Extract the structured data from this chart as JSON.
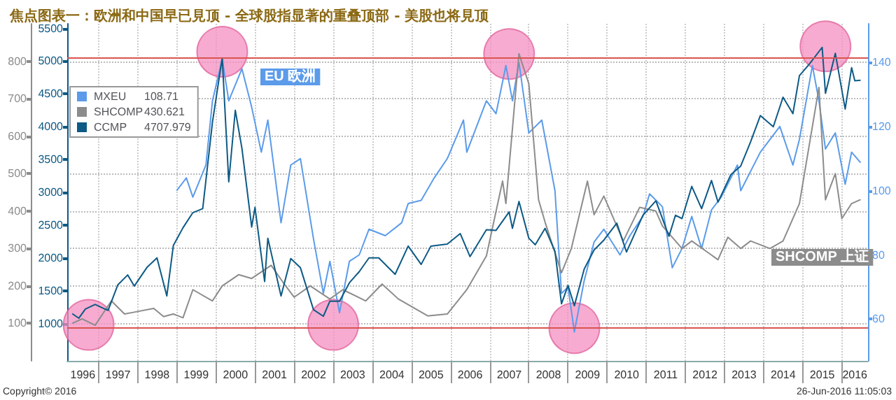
{
  "chart_data": {
    "type": "line",
    "title": "焦点图表一：欧洲和中国早已見顶 - 全球股指显著的重叠顶部 - 美股也将見顶",
    "annotations": [
      "EU 欧洲",
      "SHCOMP 上证",
      "Copyright© 2016",
      "26-Jun-2016 11:05:03",
      "108.71",
      "430.621",
      "4707.979"
    ],
    "xlim": [
      "1996-03-15",
      "2016-09-01"
    ],
    "xticks": [
      {
        "value": "1996-08-08",
        "label": "1996"
      },
      {
        "value": "1997-01-01",
        "label": null
      },
      {
        "value": "1997-07-02",
        "label": "1997"
      },
      {
        "value": "1998-01-01",
        "label": null
      },
      {
        "value": "1998-07-02",
        "label": "1998"
      },
      {
        "value": "1999-01-01",
        "label": null
      },
      {
        "value": "1999-07-02",
        "label": "1999"
      },
      {
        "value": "2000-01-01",
        "label": null
      },
      {
        "value": "2000-07-02",
        "label": "2000"
      },
      {
        "value": "2001-01-01",
        "label": null
      },
      {
        "value": "2001-07-02",
        "label": "2001"
      },
      {
        "value": "2002-01-01",
        "label": null
      },
      {
        "value": "2002-07-02",
        "label": "2002"
      },
      {
        "value": "2003-01-01",
        "label": null
      },
      {
        "value": "2003-07-02",
        "label": "2003"
      },
      {
        "value": "2004-01-01",
        "label": null
      },
      {
        "value": "2004-07-02",
        "label": "2004"
      },
      {
        "value": "2005-01-01",
        "label": null
      },
      {
        "value": "2005-07-02",
        "label": "2005"
      },
      {
        "value": "2006-01-01",
        "label": null
      },
      {
        "value": "2006-07-02",
        "label": "2006"
      },
      {
        "value": "2007-01-01",
        "label": null
      },
      {
        "value": "2007-07-02",
        "label": "2007"
      },
      {
        "value": "2008-01-01",
        "label": null
      },
      {
        "value": "2008-07-02",
        "label": "2008"
      },
      {
        "value": "2009-01-01",
        "label": null
      },
      {
        "value": "2009-07-02",
        "label": "2009"
      },
      {
        "value": "2010-01-01",
        "label": null
      },
      {
        "value": "2010-07-02",
        "label": "2010"
      },
      {
        "value": "2011-01-01",
        "label": null
      },
      {
        "value": "2011-07-02",
        "label": "2011"
      },
      {
        "value": "2012-01-01",
        "label": null
      },
      {
        "value": "2012-07-02",
        "label": "2012"
      },
      {
        "value": "2013-01-01",
        "label": null
      },
      {
        "value": "2013-07-02",
        "label": "2013"
      },
      {
        "value": "2014-01-01",
        "label": null
      },
      {
        "value": "2014-07-02",
        "label": "2014"
      },
      {
        "value": "2015-01-01",
        "label": null
      },
      {
        "value": "2015-07-02",
        "label": "2015"
      },
      {
        "value": "2016-01-01",
        "label": null
      },
      {
        "value": "2016-05-01",
        "label": "2016"
      }
    ],
    "ylim": [
      0,
      900
    ],
    "yticks": [
      100,
      200,
      300,
      400,
      500,
      600,
      700,
      800
    ],
    "y2lim": [
      430,
      5570
    ],
    "y2ticks": [
      1000,
      1500,
      2000,
      2500,
      3000,
      3500,
      4000,
      4500,
      5000,
      5500
    ],
    "y3lim": [
      47,
      152
    ],
    "y3ticks": [
      60,
      80,
      100,
      120,
      140
    ],
    "grid": true,
    "legend": "top left",
    "ref_lines": [
      {
        "axis": "y3",
        "value": 141.5,
        "color": "#d9534f"
      },
      {
        "axis": "y3",
        "value": 57.5,
        "color": "#d9534f"
      }
    ],
    "series": [
      {
        "name": "MXEU",
        "color": "#5b9bea",
        "axis": "y3",
        "x": [
          "1999-01",
          "1999-04",
          "1999-06",
          "1999-10",
          "1999-12",
          "2000-03",
          "2000-05",
          "2000-09",
          "2000-12",
          "2001-03",
          "2001-05",
          "2001-09",
          "2001-12",
          "2002-03",
          "2002-07",
          "2002-10",
          "2002-12",
          "2003-03",
          "2003-06",
          "2003-09",
          "2003-12",
          "2004-05",
          "2004-10",
          "2004-12",
          "2005-04",
          "2005-08",
          "2005-12",
          "2006-05",
          "2006-06",
          "2006-12",
          "2007-03",
          "2007-06",
          "2007-08",
          "2007-10",
          "2008-01",
          "2008-05",
          "2008-09",
          "2008-11",
          "2009-01",
          "2009-03",
          "2009-06",
          "2009-09",
          "2009-12",
          "2010-05",
          "2010-08",
          "2010-12",
          "2011-02",
          "2011-06",
          "2011-09",
          "2011-12",
          "2012-03",
          "2012-06",
          "2012-09",
          "2012-12",
          "2013-05",
          "2013-06",
          "2013-12",
          "2014-06",
          "2014-10",
          "2014-12",
          "2015-04",
          "2015-06",
          "2015-08",
          "2015-11",
          "2016-02",
          "2016-04",
          "2016-06-24"
        ],
        "values": [
          100,
          104,
          98,
          108,
          128,
          141,
          128,
          138,
          126,
          112,
          122,
          90,
          108,
          110,
          85,
          68,
          78,
          62,
          78,
          80,
          88,
          86,
          90,
          96,
          97,
          104,
          110,
          122,
          112,
          128,
          124,
          139,
          128,
          140,
          118,
          122,
          100,
          68,
          70,
          56,
          72,
          84,
          88,
          80,
          86,
          92,
          99,
          95,
          76,
          82,
          92,
          82,
          94,
          98,
          108,
          100,
          112,
          120,
          108,
          116,
          139,
          128,
          113,
          118,
          102,
          112,
          108.71
        ]
      },
      {
        "name": "SHCOMP",
        "color": "#8c8c8c",
        "x": [
          "1996-05",
          "1996-08",
          "1996-12",
          "1997-05",
          "1997-09",
          "1997-12",
          "1998-06",
          "1998-09",
          "1998-12",
          "1999-03",
          "1999-06",
          "1999-12",
          "2000-03",
          "2000-08",
          "2000-12",
          "2001-06",
          "2001-10",
          "2002-01",
          "2002-06",
          "2002-12",
          "2003-04",
          "2003-11",
          "2004-04",
          "2004-09",
          "2005-06",
          "2005-12",
          "2006-06",
          "2006-12",
          "2007-05",
          "2007-06",
          "2007-10",
          "2008-01",
          "2008-04",
          "2008-06",
          "2008-11",
          "2009-02",
          "2009-07",
          "2009-09",
          "2009-12",
          "2010-06",
          "2010-11",
          "2011-04",
          "2011-06",
          "2011-12",
          "2012-03",
          "2012-11",
          "2013-02",
          "2013-06",
          "2013-09",
          "2014-03",
          "2014-07",
          "2014-12",
          "2015-06",
          "2015-08",
          "2015-11",
          "2016-01",
          "2016-04",
          "2016-06-24"
        ],
        "values": [
          100,
          112,
          95,
          160,
          125,
          130,
          140,
          118,
          125,
          115,
          190,
          160,
          200,
          230,
          220,
          255,
          205,
          170,
          200,
          165,
          190,
          160,
          205,
          165,
          120,
          125,
          190,
          280,
          480,
          420,
          820,
          740,
          430,
          370,
          235,
          300,
          480,
          390,
          440,
          320,
          410,
          400,
          360,
          300,
          320,
          270,
          330,
          300,
          320,
          300,
          320,
          420,
          730,
          430,
          500,
          380,
          420,
          430.621
        ]
      },
      {
        "name": "CCMP",
        "color": "#0d5a85",
        "axis": "y2",
        "x": [
          "1996-05",
          "1996-07",
          "1996-09",
          "1996-12",
          "1997-03",
          "1997-04",
          "1997-07",
          "1997-10",
          "1997-12",
          "1998-04",
          "1998-07",
          "1998-10",
          "1998-12",
          "1999-03",
          "1999-06",
          "1999-09",
          "1999-12",
          "2000-03",
          "2000-05",
          "2000-07",
          "2000-09",
          "2000-12",
          "2001-01",
          "2001-04",
          "2001-05",
          "2001-09",
          "2001-12",
          "2002-03",
          "2002-07",
          "2002-10",
          "2002-12",
          "2003-03",
          "2003-06",
          "2003-09",
          "2003-12",
          "2004-03",
          "2004-08",
          "2004-12",
          "2005-04",
          "2005-07",
          "2005-12",
          "2006-04",
          "2006-07",
          "2006-12",
          "2007-03",
          "2007-07",
          "2007-08",
          "2007-10",
          "2008-01",
          "2008-03",
          "2008-06",
          "2008-09",
          "2008-11",
          "2009-01",
          "2009-03",
          "2009-06",
          "2009-09",
          "2009-12",
          "2010-04",
          "2010-07",
          "2010-12",
          "2011-04",
          "2011-08",
          "2011-10",
          "2011-12",
          "2012-03",
          "2012-06",
          "2012-09",
          "2012-11",
          "2013-03",
          "2013-06",
          "2013-09",
          "2013-12",
          "2014-04",
          "2014-07",
          "2014-10",
          "2014-12",
          "2015-03",
          "2015-07",
          "2015-08",
          "2015-11",
          "2016-02",
          "2016-04",
          "2016-05",
          "2016-06-24"
        ],
        "values": [
          1150,
          1080,
          1220,
          1290,
          1220,
          1200,
          1590,
          1740,
          1570,
          1860,
          2000,
          1420,
          2190,
          2460,
          2690,
          2750,
          4070,
          5050,
          3160,
          4250,
          3670,
          2470,
          2770,
          1640,
          2300,
          1420,
          1990,
          1850,
          1210,
          1110,
          1340,
          1340,
          1620,
          1790,
          2000,
          2000,
          1750,
          2180,
          1900,
          2180,
          2210,
          2370,
          2020,
          2430,
          2420,
          2700,
          2450,
          2860,
          2300,
          2200,
          2450,
          2100,
          1300,
          1580,
          1270,
          1830,
          2120,
          2270,
          2530,
          2090,
          2650,
          2870,
          2330,
          2650,
          2600,
          3090,
          2750,
          3180,
          2850,
          3270,
          3400,
          3770,
          4170,
          4000,
          4450,
          4200,
          4780,
          4950,
          5210,
          4510,
          5120,
          4270,
          4900,
          4700,
          4707.979
        ]
      },
      {
        "type": "bubble",
        "color": "#f48fc0",
        "axis": "y3",
        "x": [
          "1996-10",
          "2000-03",
          "2003-01",
          "2007-07",
          "2009-03",
          "2015-08"
        ],
        "values": [
          58.2,
          143.3,
          58.2,
          142.6,
          57.2,
          145
        ],
        "sizes": [
          1,
          1,
          1,
          1,
          1,
          1
        ]
      }
    ]
  }
}
